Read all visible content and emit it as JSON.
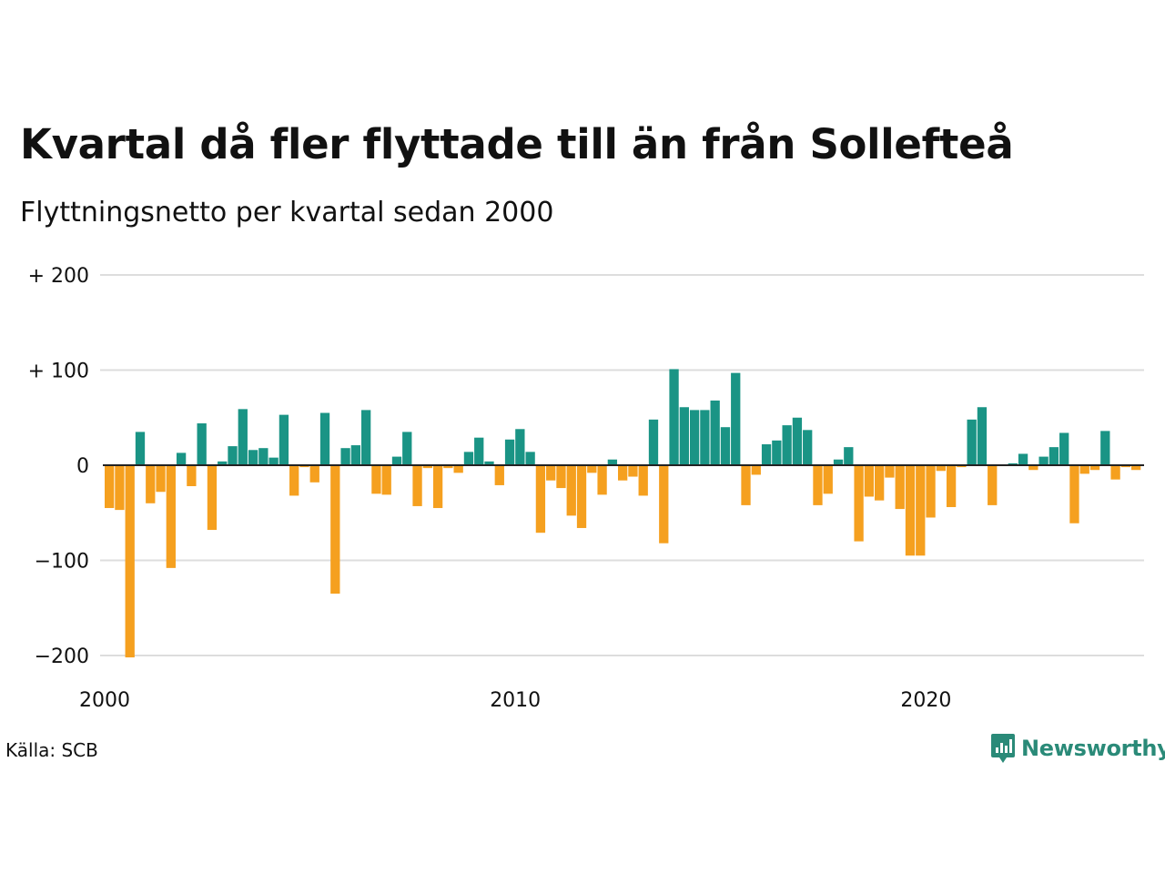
{
  "header": {
    "title": "Kvartal då fler flyttade till än från Sollefteå",
    "subtitle": "Flyttningsnetto per kvartal sedan 2000"
  },
  "footer": {
    "source": "Källa: SCB",
    "brand": "Newsworthy"
  },
  "colors": {
    "positive": "#1a9485",
    "negative": "#f5a01f",
    "grid": "#dddddd",
    "zero_line": "#222222",
    "brand": "#2a8a78"
  },
  "chart_data": {
    "type": "bar",
    "x_start": "2000 Q1",
    "ylim": [
      -200,
      200
    ],
    "y_ticks": [
      200,
      100,
      0,
      -100,
      -200
    ],
    "y_tick_labels": [
      "+ 200",
      "+ 100",
      "0",
      "−100",
      "−200"
    ],
    "x_ticks": [
      2000,
      2010,
      2020
    ],
    "x_tick_labels": [
      "2000",
      "2010",
      "2020"
    ],
    "grid": true,
    "series": [
      {
        "values": [
          -45,
          -47,
          -202,
          35,
          -40,
          -28,
          -108,
          13,
          -22,
          44,
          -68,
          4,
          20,
          59,
          16,
          18,
          8,
          53,
          -32,
          -2,
          -18,
          55,
          -135,
          18,
          21,
          58,
          -30,
          -31,
          9,
          35,
          -43,
          -3,
          -45,
          -3,
          -8,
          14,
          29,
          4,
          -21,
          27,
          38,
          14,
          -71,
          -16,
          -24,
          -53,
          -66,
          -8,
          -31,
          6,
          -16,
          -12,
          -32,
          48,
          -82,
          101,
          61,
          58,
          58,
          68,
          40,
          97,
          -42,
          -10,
          22,
          26,
          42,
          50,
          37,
          -42,
          -30,
          6,
          19,
          -80,
          -33,
          -37,
          -13,
          -46,
          -95,
          -95,
          -55,
          -6,
          -44,
          -2,
          48,
          61,
          -42,
          -1,
          2,
          12,
          -5,
          9,
          19,
          34,
          -61,
          -9,
          -5,
          36,
          -15,
          -2,
          -5
        ]
      }
    ]
  }
}
